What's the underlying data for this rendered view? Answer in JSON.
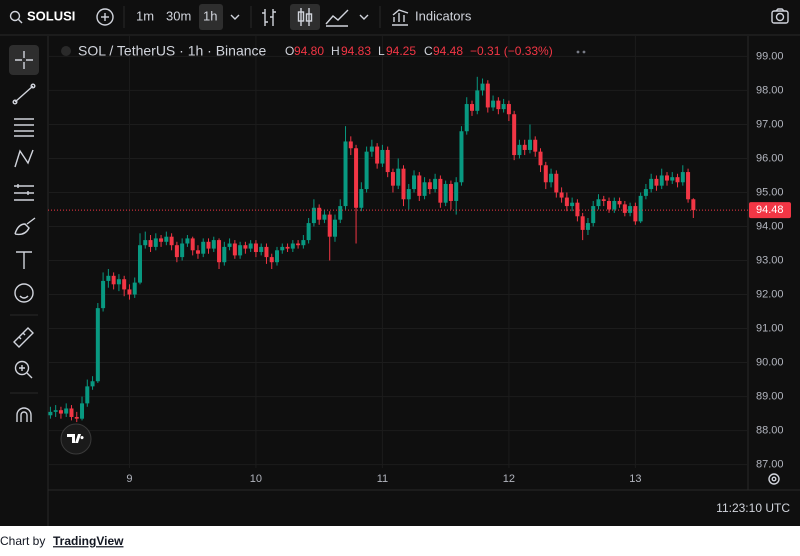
{
  "toolbar": {
    "symbol": "SOLUSI",
    "intervals": [
      "1m",
      "30m",
      "1h"
    ],
    "indicators": "Indicators"
  },
  "legend": {
    "title": "SOL / TetherUS · 1h · Binance",
    "o_label": "O",
    "o": "94.80",
    "h_label": "H",
    "h": "94.83",
    "l_label": "L",
    "l": "94.25",
    "c_label": "C",
    "c": "94.48",
    "change": "−0.31 (−0.33%)"
  },
  "clock": "11:23:10 UTC",
  "footer": {
    "prefix": "Chart by",
    "link": "TradingView"
  },
  "chart_data": {
    "type": "candlestick",
    "up_color": "#089981",
    "down_color": "#f23645",
    "categories": [
      null,
      null,
      null,
      null,
      null,
      null,
      null,
      null,
      null,
      null,
      null,
      null,
      null,
      null,
      null,
      "9",
      null,
      null,
      null,
      null,
      null,
      null,
      null,
      null,
      null,
      null,
      null,
      null,
      null,
      null,
      null,
      null,
      null,
      null,
      null,
      null,
      null,
      null,
      null,
      "10",
      null,
      null,
      null,
      null,
      null,
      null,
      null,
      null,
      null,
      null,
      null,
      null,
      null,
      null,
      null,
      null,
      null,
      null,
      null,
      null,
      null,
      null,
      null,
      "11",
      null,
      null,
      null,
      null,
      null,
      null,
      null,
      null,
      null,
      null,
      null,
      null,
      null,
      null,
      null,
      null,
      null,
      null,
      null,
      null,
      null,
      null,
      null,
      "12",
      null,
      null,
      null,
      null,
      null,
      null,
      null,
      null,
      null,
      null,
      null,
      null,
      null,
      null,
      null,
      null,
      null,
      null,
      null,
      null,
      null,
      null,
      null,
      "13",
      null,
      null,
      null,
      null,
      null,
      null,
      null,
      null,
      null,
      null,
      null
    ],
    "open": [
      88.45,
      88.55,
      88.6,
      88.5,
      88.65,
      88.4,
      88.35,
      88.8,
      89.3,
      89.45,
      91.6,
      92.4,
      92.55,
      92.3,
      92.45,
      92.15,
      92.0,
      92.35,
      93.45,
      93.6,
      93.4,
      93.65,
      93.55,
      93.7,
      93.45,
      93.1,
      93.5,
      93.65,
      93.3,
      93.2,
      93.55,
      93.35,
      93.6,
      92.95,
      93.4,
      93.5,
      93.15,
      93.45,
      93.35,
      93.5,
      93.25,
      93.4,
      93.1,
      92.95,
      93.3,
      93.4,
      93.35,
      93.5,
      93.45,
      93.6,
      94.1,
      94.55,
      94.2,
      94.35,
      93.7,
      94.2,
      94.6,
      96.5,
      96.3,
      94.55,
      95.1,
      96.2,
      96.35,
      95.85,
      96.25,
      95.6,
      95.2,
      95.7,
      94.8,
      95.1,
      95.5,
      94.9,
      95.3,
      95.1,
      95.4,
      94.7,
      95.25,
      94.75,
      95.3,
      96.8,
      97.6,
      97.4,
      98.0,
      98.2,
      97.5,
      97.7,
      97.45,
      97.6,
      97.3,
      96.1,
      96.4,
      96.25,
      96.55,
      96.2,
      95.8,
      95.3,
      95.55,
      95.0,
      94.85,
      94.6,
      94.7,
      94.3,
      93.9,
      94.1,
      94.6,
      94.8,
      94.75,
      94.5,
      94.75,
      94.65,
      94.4,
      94.6,
      94.15,
      94.9,
      95.1,
      95.4,
      95.2,
      95.5,
      95.35,
      95.45,
      95.3,
      95.6,
      94.8
    ],
    "high": [
      88.7,
      88.75,
      88.7,
      88.8,
      88.75,
      88.55,
      89.0,
      89.5,
      89.6,
      91.75,
      92.65,
      92.75,
      92.65,
      92.6,
      92.55,
      92.3,
      92.5,
      93.8,
      93.85,
      93.75,
      93.8,
      93.75,
      93.85,
      93.8,
      93.55,
      93.65,
      93.75,
      93.7,
      93.45,
      93.65,
      93.65,
      93.7,
      93.65,
      93.55,
      93.65,
      93.6,
      93.55,
      93.55,
      93.6,
      93.6,
      93.5,
      93.5,
      93.2,
      93.4,
      93.5,
      93.5,
      93.6,
      93.6,
      93.75,
      94.25,
      94.8,
      94.65,
      94.5,
      94.45,
      94.35,
      94.8,
      96.95,
      96.65,
      96.4,
      95.3,
      96.35,
      96.55,
      96.45,
      96.4,
      96.35,
      95.7,
      96.0,
      95.8,
      95.25,
      95.65,
      95.6,
      95.45,
      95.4,
      95.55,
      95.5,
      95.35,
      95.35,
      95.45,
      96.95,
      97.8,
      97.7,
      98.4,
      98.35,
      98.3,
      97.85,
      97.8,
      97.75,
      97.7,
      97.4,
      96.55,
      96.55,
      97.0,
      96.65,
      96.3,
      95.9,
      95.7,
      95.65,
      95.15,
      95.0,
      94.85,
      94.8,
      94.4,
      94.25,
      94.75,
      94.95,
      94.9,
      94.85,
      94.85,
      94.85,
      94.75,
      94.7,
      94.7,
      95.0,
      95.25,
      95.55,
      95.5,
      95.7,
      95.6,
      95.6,
      95.55,
      95.8,
      95.7,
      94.83
    ],
    "low": [
      88.35,
      88.4,
      88.35,
      88.4,
      88.3,
      88.25,
      88.3,
      88.7,
      89.2,
      89.4,
      91.5,
      92.2,
      92.15,
      92.1,
      91.95,
      91.85,
      91.9,
      92.3,
      93.35,
      93.25,
      93.3,
      93.4,
      93.45,
      93.3,
      92.95,
      93.0,
      93.4,
      93.15,
      93.05,
      93.1,
      93.2,
      93.25,
      92.75,
      92.85,
      93.3,
      93.05,
      93.05,
      93.2,
      93.25,
      93.1,
      93.15,
      92.9,
      92.75,
      92.85,
      93.2,
      93.25,
      93.25,
      93.35,
      93.35,
      93.5,
      94.0,
      94.05,
      94.1,
      93.0,
      93.55,
      94.1,
      94.5,
      96.1,
      93.5,
      94.45,
      95.0,
      96.05,
      95.7,
      95.75,
      95.45,
      95.0,
      95.1,
      94.6,
      94.5,
      95.0,
      94.75,
      94.8,
      94.95,
      95.0,
      94.55,
      94.6,
      94.5,
      94.35,
      95.2,
      96.7,
      97.25,
      97.3,
      97.85,
      97.35,
      97.4,
      97.3,
      97.35,
      97.1,
      95.95,
      96.0,
      96.1,
      96.15,
      96.05,
      95.6,
      95.1,
      95.15,
      94.85,
      94.7,
      94.45,
      94.45,
      94.15,
      93.6,
      93.75,
      94.0,
      94.5,
      94.6,
      94.4,
      94.4,
      94.55,
      94.3,
      94.3,
      94.05,
      94.1,
      94.8,
      95.0,
      95.05,
      95.1,
      95.2,
      95.25,
      95.15,
      95.2,
      94.7,
      94.25
    ],
    "close": [
      88.55,
      88.6,
      88.5,
      88.65,
      88.4,
      88.35,
      88.8,
      89.3,
      89.45,
      91.6,
      92.4,
      92.55,
      92.3,
      92.45,
      92.15,
      92.0,
      92.35,
      93.45,
      93.6,
      93.4,
      93.65,
      93.55,
      93.7,
      93.45,
      93.1,
      93.5,
      93.65,
      93.3,
      93.2,
      93.55,
      93.35,
      93.6,
      92.95,
      93.4,
      93.5,
      93.15,
      93.45,
      93.35,
      93.5,
      93.25,
      93.4,
      93.1,
      92.95,
      93.3,
      93.4,
      93.35,
      93.5,
      93.45,
      93.6,
      94.1,
      94.55,
      94.2,
      94.35,
      93.7,
      94.2,
      94.6,
      96.5,
      96.3,
      94.55,
      95.1,
      96.2,
      96.35,
      95.85,
      96.25,
      95.6,
      95.2,
      95.7,
      94.8,
      95.1,
      95.5,
      94.9,
      95.3,
      95.1,
      95.4,
      94.7,
      95.25,
      94.75,
      95.3,
      96.8,
      97.6,
      97.4,
      98.0,
      98.2,
      97.5,
      97.7,
      97.45,
      97.6,
      97.3,
      96.1,
      96.4,
      96.25,
      96.55,
      96.2,
      95.8,
      95.3,
      95.55,
      95.0,
      94.85,
      94.6,
      94.7,
      94.3,
      93.9,
      94.1,
      94.6,
      94.8,
      94.75,
      94.5,
      94.75,
      94.65,
      94.4,
      94.6,
      94.15,
      94.9,
      95.1,
      95.4,
      95.2,
      95.5,
      95.35,
      95.45,
      95.3,
      95.6,
      94.8,
      94.48
    ],
    "ylim": [
      86.9,
      99.6
    ],
    "yticks": [
      {
        "value": 87,
        "label": "87.00"
      },
      {
        "value": 88,
        "label": "88.00"
      },
      {
        "value": 89,
        "label": "89.00"
      },
      {
        "value": 90,
        "label": "90.00"
      },
      {
        "value": 91,
        "label": "91.00"
      },
      {
        "value": 92,
        "label": "92.00"
      },
      {
        "value": 93,
        "label": "93.00"
      },
      {
        "value": 94,
        "label": "94.00"
      },
      {
        "value": 95,
        "label": "95.00"
      },
      {
        "value": 96,
        "label": "96.00"
      },
      {
        "value": 97,
        "label": "97.00"
      },
      {
        "value": 98,
        "label": "98.00"
      },
      {
        "value": 99,
        "label": "99.00"
      }
    ],
    "last_price": {
      "value": 94.48,
      "label": "94.48"
    },
    "grid": true
  }
}
